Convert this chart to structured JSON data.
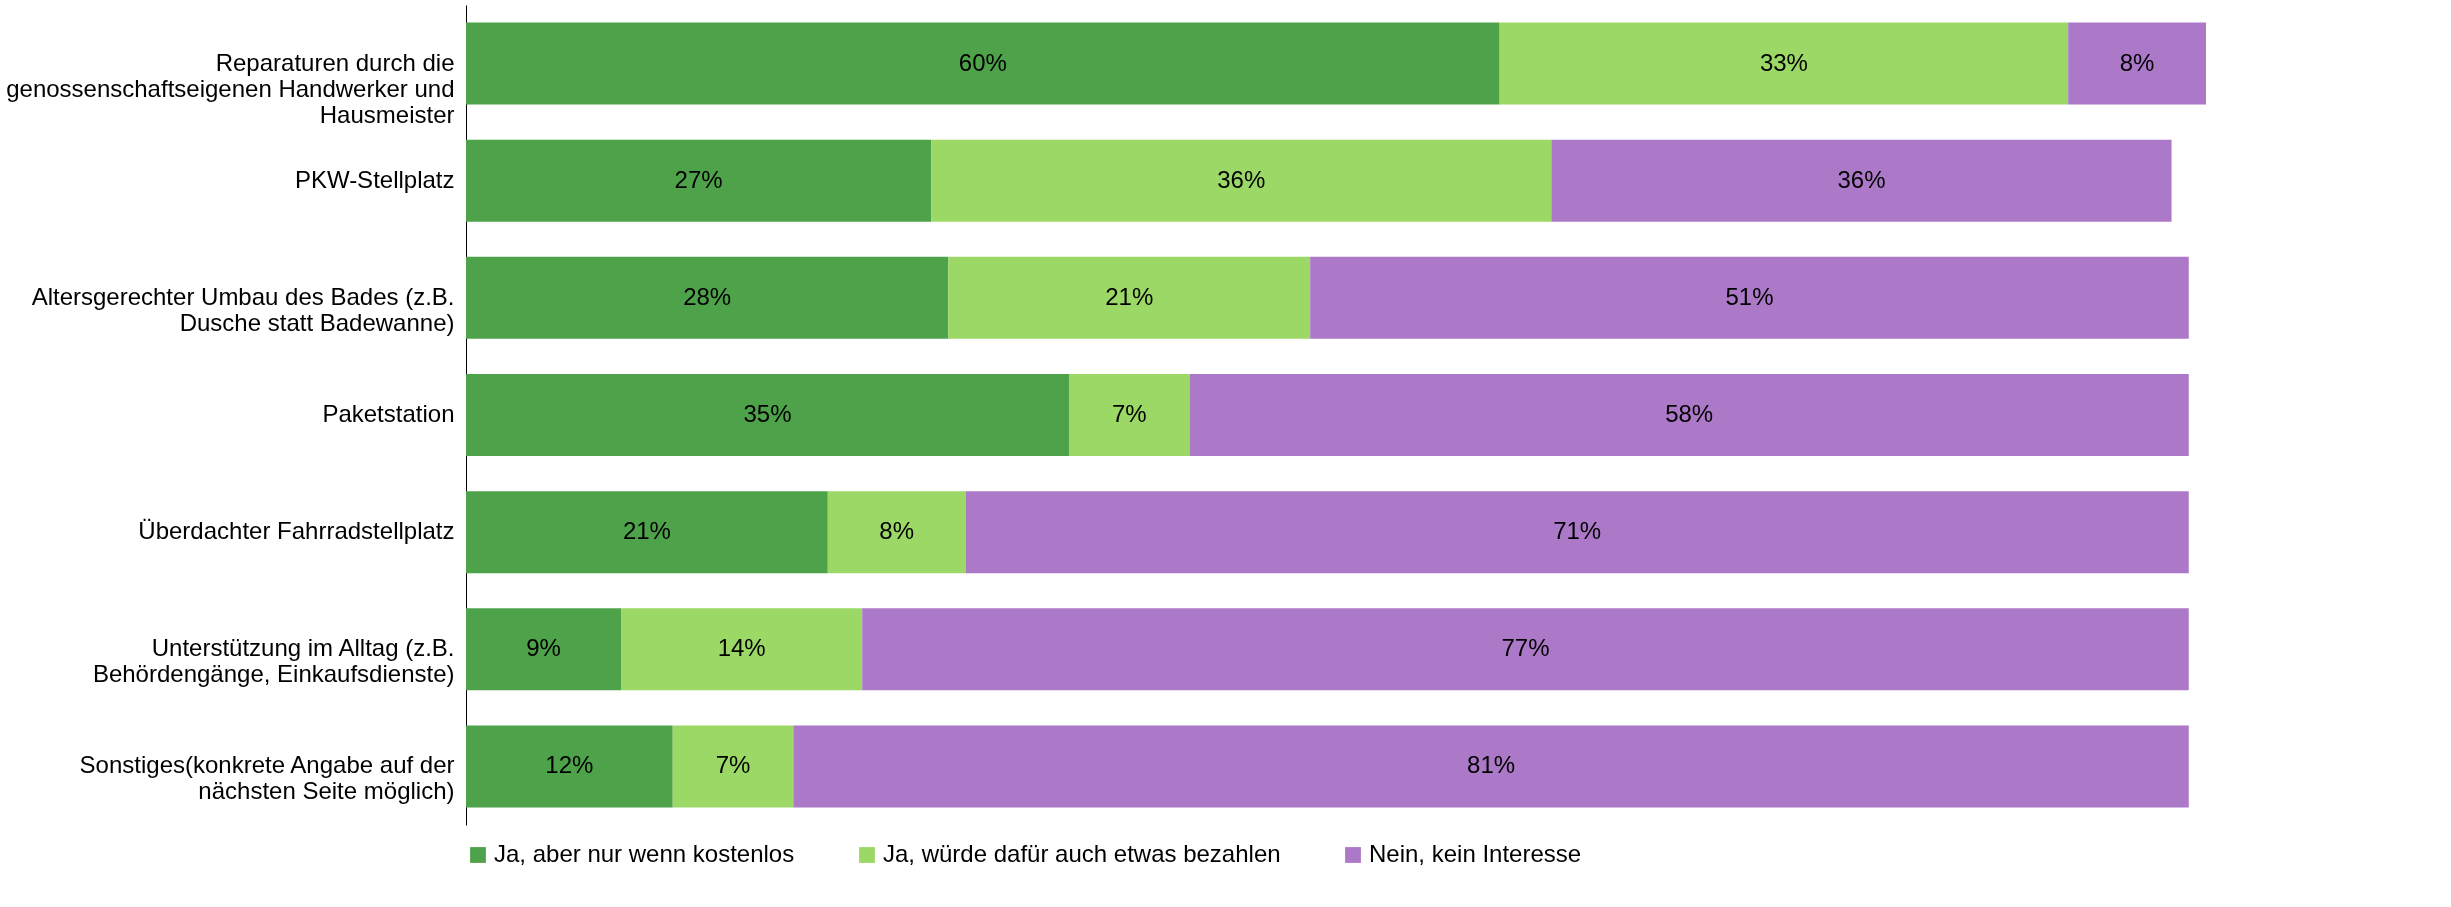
{
  "chart_data": {
    "type": "bar",
    "orientation": "horizontal",
    "stacked": true,
    "legend": "bottom",
    "categories": [
      "Reparaturen durch die genossenschaftseigenen Handwerker und Hausmeister",
      "PKW-Stellplatz",
      "Altersgerechter Umbau des Bades (z.B. Dusche  statt Badewanne)",
      "Paketstation",
      "Überdachter Fahrradstellplatz",
      "Unterstützung im Alltag (z.B. Behördengänge, Einkaufsdienste)",
      "Sonstiges(konkrete Angabe auf der nächsten Seite möglich)"
    ],
    "series": [
      {
        "name": "Ja, aber nur wenn kostenlos",
        "color": "#4ea24a",
        "values": [
          60,
          27,
          28,
          35,
          21,
          9,
          12
        ],
        "value_labels": [
          "60%",
          "27%",
          "28%",
          "35%",
          "21%",
          "9%",
          "12%"
        ]
      },
      {
        "name": "Ja, würde dafür auch etwas bezahlen",
        "color": "#9bd866",
        "values": [
          33,
          36,
          21,
          7,
          8,
          14,
          7
        ],
        "value_labels": [
          "33%",
          "36%",
          "21%",
          "7%",
          "8%",
          "14%",
          "7%"
        ]
      },
      {
        "name": "Nein, kein Interesse",
        "color": "#ac78c8",
        "values": [
          8,
          36,
          51,
          58,
          71,
          77,
          81
        ],
        "value_labels": [
          "8%",
          "36%",
          "51%",
          "58%",
          "71%",
          "77%",
          "81%"
        ]
      }
    ]
  }
}
